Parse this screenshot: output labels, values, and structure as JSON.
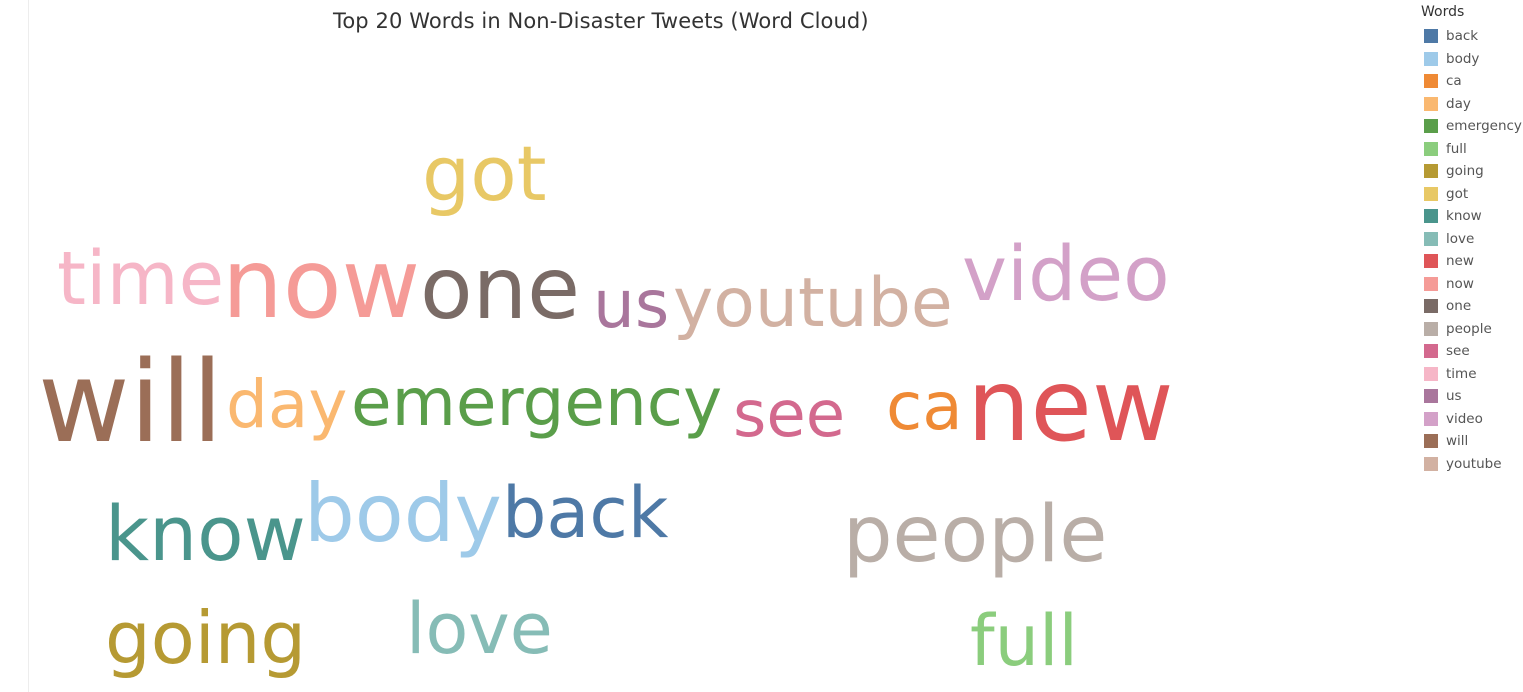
{
  "chart_data": {
    "type": "word_cloud",
    "title": "Top 20 Words in Non-Disaster Tweets (Word Cloud)",
    "legend_title": "Words",
    "legend_position": "right",
    "words": [
      {
        "text": "got",
        "color": "#e8c865"
      },
      {
        "text": "time",
        "color": "#f6b6c7"
      },
      {
        "text": "now",
        "color": "#f59b97"
      },
      {
        "text": "one",
        "color": "#7a6b66"
      },
      {
        "text": "us",
        "color": "#a9769c"
      },
      {
        "text": "youtube",
        "color": "#d2b1a2"
      },
      {
        "text": "video",
        "color": "#d3a1c8"
      },
      {
        "text": "will",
        "color": "#9b6e57"
      },
      {
        "text": "day",
        "color": "#fab870"
      },
      {
        "text": "emergency",
        "color": "#5a9e4a"
      },
      {
        "text": "see",
        "color": "#d3698e"
      },
      {
        "text": "ca",
        "color": "#ef8a35"
      },
      {
        "text": "new",
        "color": "#df5558"
      },
      {
        "text": "know",
        "color": "#4a958c"
      },
      {
        "text": "body",
        "color": "#9ecae9"
      },
      {
        "text": "back",
        "color": "#4e79a6"
      },
      {
        "text": "people",
        "color": "#b9aea7"
      },
      {
        "text": "going",
        "color": "#b69a33"
      },
      {
        "text": "love",
        "color": "#86bcb6"
      },
      {
        "text": "full",
        "color": "#8bcd7d"
      }
    ],
    "legend": [
      {
        "label": "back",
        "color": "#4e79a6"
      },
      {
        "label": "body",
        "color": "#9ecae9"
      },
      {
        "label": "ca",
        "color": "#ef8a35"
      },
      {
        "label": "day",
        "color": "#fab870"
      },
      {
        "label": "emergency",
        "color": "#5a9e4a"
      },
      {
        "label": "full",
        "color": "#8bcd7d"
      },
      {
        "label": "going",
        "color": "#b69a33"
      },
      {
        "label": "got",
        "color": "#e8c865"
      },
      {
        "label": "know",
        "color": "#4a958c"
      },
      {
        "label": "love",
        "color": "#86bcb6"
      },
      {
        "label": "new",
        "color": "#df5558"
      },
      {
        "label": "now",
        "color": "#f59b97"
      },
      {
        "label": "one",
        "color": "#7a6b66"
      },
      {
        "label": "people",
        "color": "#b9aea7"
      },
      {
        "label": "see",
        "color": "#d3698e"
      },
      {
        "label": "time",
        "color": "#f6b6c7"
      },
      {
        "label": "us",
        "color": "#a9769c"
      },
      {
        "label": "video",
        "color": "#d3a1c8"
      },
      {
        "label": "will",
        "color": "#9b6e57"
      },
      {
        "label": "youtube",
        "color": "#d2b1a2"
      }
    ]
  }
}
